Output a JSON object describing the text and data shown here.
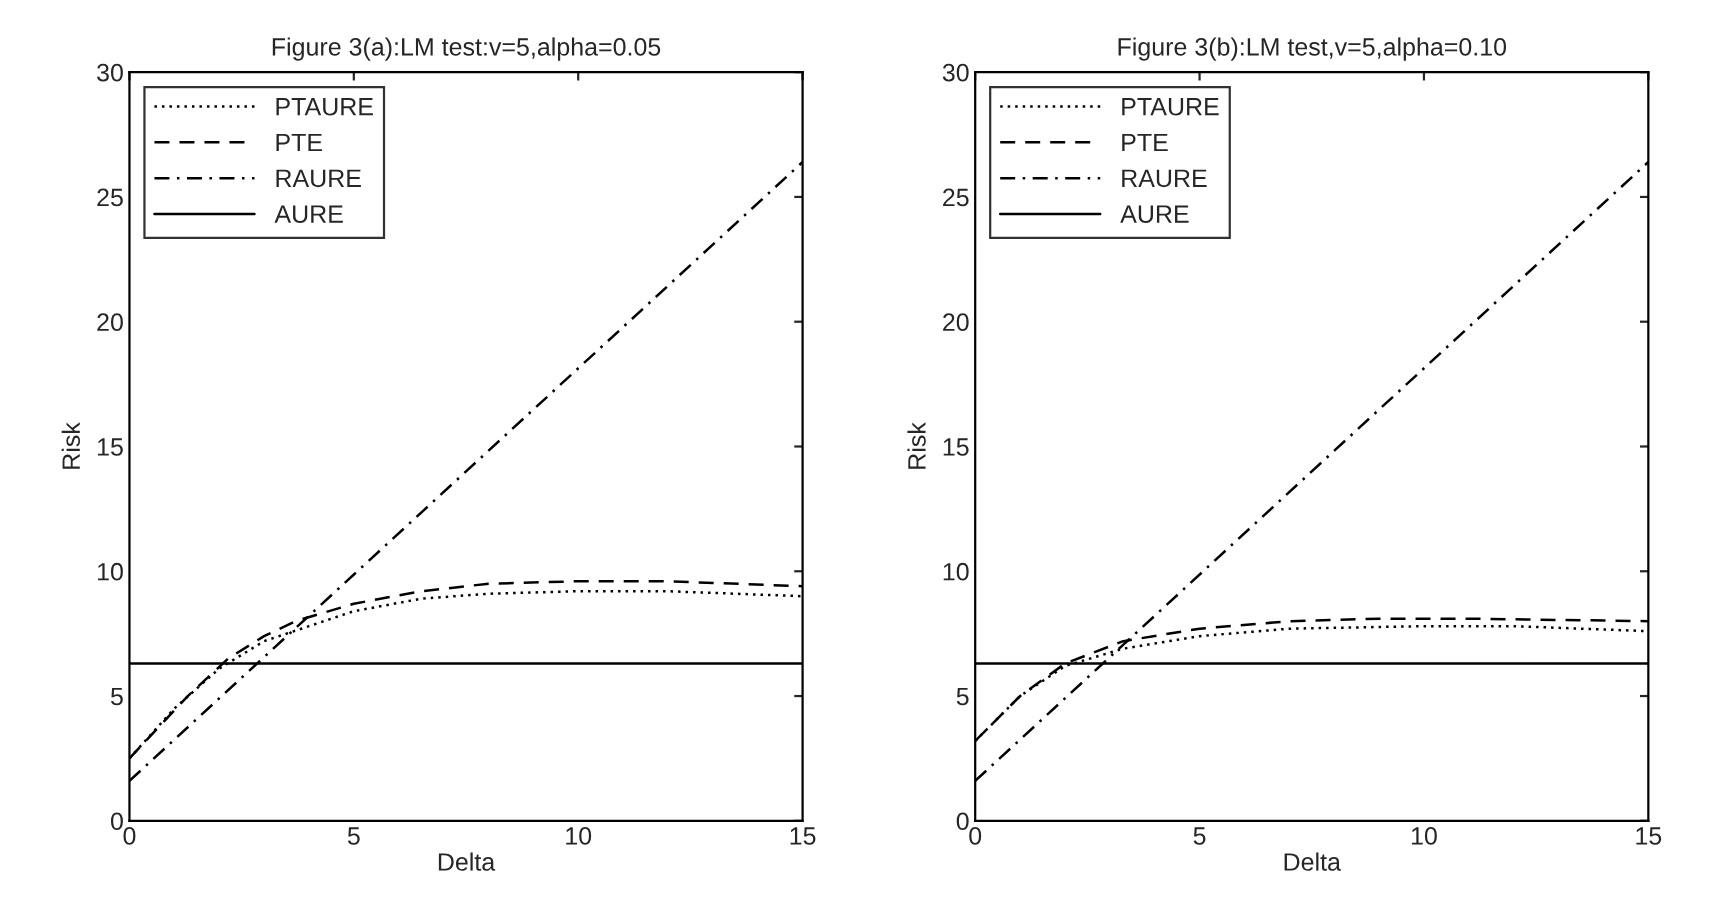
{
  "chart_data": [
    {
      "type": "line",
      "title": "Figure 3(a):LM test:v=5,alpha=0.05",
      "xlabel": "Delta",
      "ylabel": "Risk",
      "xlim": [
        0,
        15
      ],
      "ylim": [
        0,
        30
      ],
      "xticks": [
        0,
        5,
        10,
        15
      ],
      "yticks": [
        0,
        5,
        10,
        15,
        20,
        25,
        30
      ],
      "grid": false,
      "legend": "top left",
      "series": [
        {
          "name": "PTAURE",
          "color": "#000000",
          "line_style": "dotted",
          "x": [
            0,
            1,
            2,
            3,
            4,
            5,
            6.5,
            8,
            10,
            12,
            15
          ],
          "values": [
            2.5,
            4.5,
            6.1,
            7.2,
            7.8,
            8.4,
            8.9,
            9.1,
            9.2,
            9.2,
            9.0
          ]
        },
        {
          "name": "PTE",
          "color": "#000000",
          "line_style": "dashed",
          "x": [
            0,
            1.3,
            2.2,
            3,
            3.7,
            5,
            6.5,
            8,
            10,
            12,
            15
          ],
          "values": [
            2.5,
            5,
            6.5,
            7.4,
            8,
            8.7,
            9.2,
            9.5,
            9.6,
            9.6,
            9.4
          ]
        },
        {
          "name": "RAURE",
          "color": "#000000",
          "line_style": "dashdot",
          "x": [
            0,
            15
          ],
          "values": [
            1.6,
            26.4
          ]
        },
        {
          "name": "AURE",
          "color": "#000000",
          "line_style": "solid",
          "x": [
            0,
            15
          ],
          "values": [
            6.3,
            6.3
          ]
        }
      ]
    },
    {
      "type": "line",
      "title": "Figure 3(b):LM test,v=5,alpha=0.10",
      "xlabel": "Delta",
      "ylabel": "Risk",
      "xlim": [
        0,
        15
      ],
      "ylim": [
        0,
        30
      ],
      "xticks": [
        0,
        5,
        10,
        15
      ],
      "yticks": [
        0,
        5,
        10,
        15,
        20,
        25,
        30
      ],
      "grid": false,
      "legend": "top left",
      "series": [
        {
          "name": "PTAURE",
          "color": "#000000",
          "line_style": "dotted",
          "x": [
            0,
            1,
            2,
            3.3,
            5,
            7,
            10,
            12,
            15
          ],
          "values": [
            3.2,
            5,
            6.2,
            6.9,
            7.4,
            7.7,
            7.8,
            7.8,
            7.6
          ]
        },
        {
          "name": "PTE",
          "color": "#000000",
          "line_style": "dashed",
          "x": [
            0,
            1,
            2,
            3.3,
            5,
            7,
            9,
            11,
            15
          ],
          "values": [
            3.2,
            5,
            6.3,
            7.2,
            7.7,
            8.0,
            8.1,
            8.1,
            8.0
          ]
        },
        {
          "name": "RAURE",
          "color": "#000000",
          "line_style": "dashdot",
          "x": [
            0,
            15
          ],
          "values": [
            1.6,
            26.4
          ]
        },
        {
          "name": "AURE",
          "color": "#000000",
          "line_style": "solid",
          "x": [
            0,
            15
          ],
          "values": [
            6.3,
            6.3
          ]
        }
      ]
    }
  ]
}
